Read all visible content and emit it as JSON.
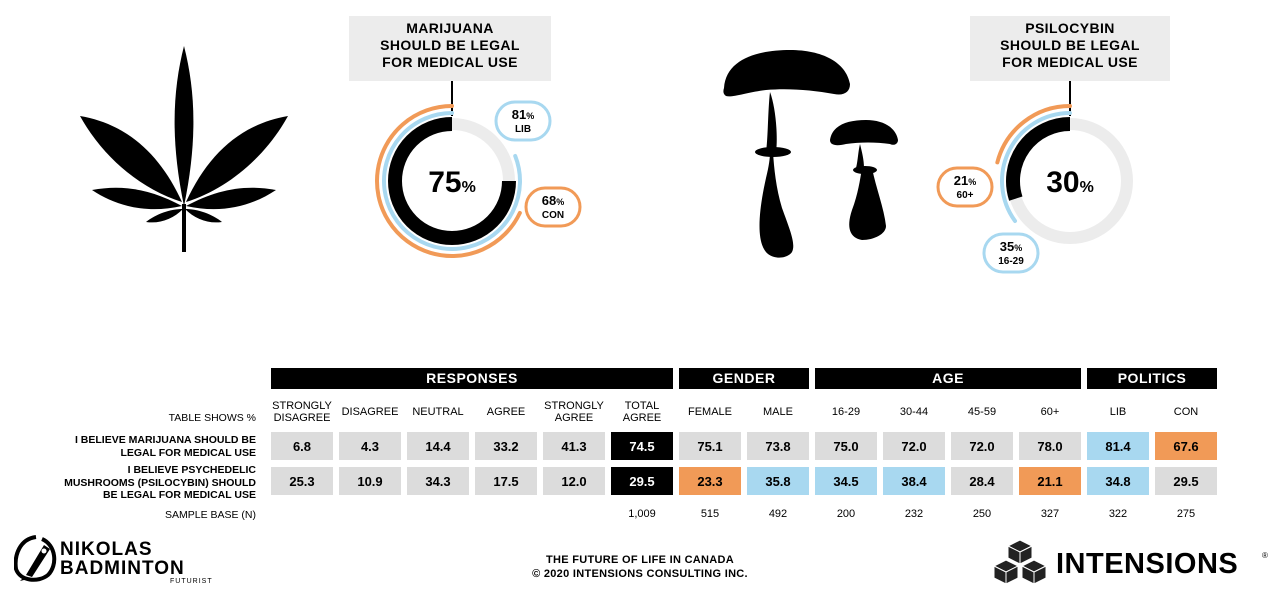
{
  "panels": {
    "marijuana": {
      "title_lines": [
        "MARIJUANA",
        "SHOULD BE LEGAL",
        "FOR MEDICAL USE"
      ],
      "center_value": "75",
      "badges": [
        {
          "value": "81",
          "label": "LIB"
        },
        {
          "value": "68",
          "label": "CON"
        }
      ]
    },
    "psilocybin": {
      "title_lines": [
        "PSILOCYBIN",
        "SHOULD BE LEGAL",
        "FOR MEDICAL USE"
      ],
      "center_value": "30",
      "badges": [
        {
          "value": "21",
          "label": "60+"
        },
        {
          "value": "35",
          "label": "16-29"
        }
      ]
    },
    "percent_sign": "%"
  },
  "table": {
    "groups": [
      "RESPONSES",
      "GENDER",
      "AGE",
      "POLITICS"
    ],
    "table_shows": "TABLE SHOWS %",
    "columns": [
      [
        "STRONGLY",
        "DISAGREE"
      ],
      [
        "DISAGREE"
      ],
      [
        "NEUTRAL"
      ],
      [
        "AGREE"
      ],
      [
        "STRONGLY",
        "AGREE"
      ],
      [
        "TOTAL",
        "AGREE"
      ],
      [
        "FEMALE"
      ],
      [
        "MALE"
      ],
      [
        "16-29"
      ],
      [
        "30-44"
      ],
      [
        "45-59"
      ],
      [
        "60+"
      ],
      [
        "LIB"
      ],
      [
        "CON"
      ]
    ],
    "rows": [
      {
        "label_lines": [
          "I BELIEVE MARIJUANA SHOULD BE",
          "LEGAL FOR MEDICAL USE"
        ],
        "values": [
          "6.8",
          "4.3",
          "14.4",
          "33.2",
          "41.3",
          "74.5",
          "75.1",
          "73.8",
          "75.0",
          "72.0",
          "72.0",
          "78.0",
          "81.4",
          "67.6"
        ],
        "styles": [
          "g",
          "g",
          "g",
          "g",
          "g",
          "k",
          "g",
          "g",
          "g",
          "g",
          "g",
          "g",
          "b",
          "o"
        ]
      },
      {
        "label_lines": [
          "I BELIEVE PSYCHEDELIC",
          "MUSHROOMS (PSILOCYBIN) SHOULD",
          "BE LEGAL FOR MEDICAL USE"
        ],
        "values": [
          "25.3",
          "10.9",
          "34.3",
          "17.5",
          "12.0",
          "29.5",
          "23.3",
          "35.8",
          "34.5",
          "38.4",
          "28.4",
          "21.1",
          "34.8",
          "29.5"
        ],
        "styles": [
          "g",
          "g",
          "g",
          "g",
          "g",
          "k",
          "o",
          "b",
          "b",
          "b",
          "g",
          "o",
          "b",
          "g"
        ]
      }
    ],
    "sample_label": "SAMPLE BASE (N)",
    "sample_values": [
      "",
      "",
      "",
      "",
      "",
      "1,009",
      "515",
      "492",
      "200",
      "232",
      "250",
      "327",
      "322",
      "275"
    ]
  },
  "footer": {
    "line1": "THE FUTURE OF LIFE IN CANADA",
    "line2": "© 2020 INTENSIONS CONSULTING INC.",
    "left_logo_line1": "NIKOLAS",
    "left_logo_line2": "BADMINTON",
    "left_logo_sub": "FUTURIST",
    "right_logo": "INTENSIONS",
    "right_logo_mark": "®"
  },
  "colors": {
    "black": "#000000",
    "blue": "#a8d8f0",
    "orange": "#f19a57",
    "gray": "#dcdcdc",
    "track": "#ececec"
  },
  "chart_data": [
    {
      "type": "pie",
      "title": "MARIJUANA SHOULD BE LEGAL FOR MEDICAL USE",
      "series": [
        {
          "name": "Total",
          "value": 75
        },
        {
          "name": "LIB",
          "value": 81
        },
        {
          "name": "CON",
          "value": 68
        }
      ]
    },
    {
      "type": "pie",
      "title": "PSILOCYBIN SHOULD BE LEGAL FOR MEDICAL USE",
      "series": [
        {
          "name": "Total",
          "value": 30
        },
        {
          "name": "60+",
          "value": 21
        },
        {
          "name": "16-29",
          "value": 35
        }
      ]
    },
    {
      "type": "table",
      "categories": [
        "STRONGLY DISAGREE",
        "DISAGREE",
        "NEUTRAL",
        "AGREE",
        "STRONGLY AGREE",
        "TOTAL AGREE",
        "FEMALE",
        "MALE",
        "16-29",
        "30-44",
        "45-59",
        "60+",
        "LIB",
        "CON"
      ],
      "series": [
        {
          "name": "I BELIEVE MARIJUANA SHOULD BE LEGAL FOR MEDICAL USE",
          "values": [
            6.8,
            4.3,
            14.4,
            33.2,
            41.3,
            74.5,
            75.1,
            73.8,
            75.0,
            72.0,
            72.0,
            78.0,
            81.4,
            67.6
          ]
        },
        {
          "name": "I BELIEVE PSYCHEDELIC MUSHROOMS (PSILOCYBIN) SHOULD BE LEGAL FOR MEDICAL USE",
          "values": [
            25.3,
            10.9,
            34.3,
            17.5,
            12.0,
            29.5,
            23.3,
            35.8,
            34.5,
            38.4,
            28.4,
            21.1,
            34.8,
            29.5
          ]
        }
      ],
      "sample_base": [
        null,
        null,
        null,
        null,
        null,
        1009,
        515,
        492,
        200,
        232,
        250,
        327,
        322,
        275
      ]
    }
  ]
}
